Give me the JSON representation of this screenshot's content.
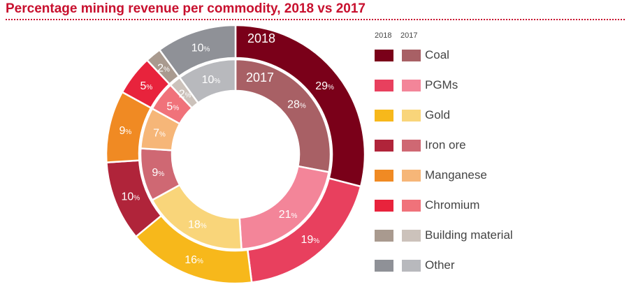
{
  "title": "Percentage mining revenue per commodity, 2018 vs 2017",
  "legend": {
    "header_2018": "2018",
    "header_2017": "2017"
  },
  "chart_data": {
    "type": "pie",
    "subtype": "nested-donut",
    "title": "Percentage mining revenue per commodity, 2018 vs 2017",
    "unit": "%",
    "categories": [
      "Coal",
      "PGMs",
      "Gold",
      "Iron ore",
      "Manganese",
      "Chromium",
      "Building material",
      "Other"
    ],
    "series": [
      {
        "name": "2018",
        "ring": "outer",
        "values": [
          29,
          19,
          16,
          10,
          9,
          5,
          2,
          10
        ],
        "colors": [
          "#7a0019",
          "#e8405e",
          "#f7b81b",
          "#b0243a",
          "#f08a23",
          "#e8233c",
          "#a99a8f",
          "#8f9197"
        ]
      },
      {
        "name": "2017",
        "ring": "inner",
        "values": [
          28,
          21,
          18,
          9,
          7,
          5,
          2,
          10
        ],
        "colors": [
          "#a86065",
          "#f38599",
          "#f9d57a",
          "#cf6873",
          "#f6b678",
          "#f0727a",
          "#ccc2bb",
          "#b8b9bd"
        ]
      }
    ]
  }
}
